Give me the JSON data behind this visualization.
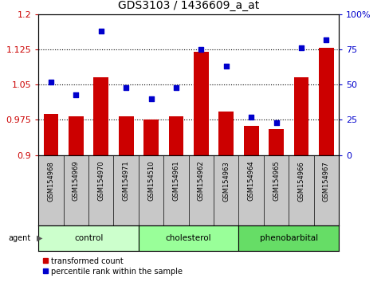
{
  "title": "GDS3103 / 1436609_a_at",
  "categories": [
    "GSM154968",
    "GSM154969",
    "GSM154970",
    "GSM154971",
    "GSM154510",
    "GSM154961",
    "GSM154962",
    "GSM154963",
    "GSM154964",
    "GSM154965",
    "GSM154966",
    "GSM154967"
  ],
  "bar_values": [
    0.988,
    0.983,
    1.065,
    0.983,
    0.975,
    0.983,
    1.119,
    0.992,
    0.963,
    0.955,
    1.065,
    1.128
  ],
  "dot_values": [
    52,
    43,
    88,
    48,
    40,
    48,
    75,
    63,
    27,
    23,
    76,
    82
  ],
  "bar_color": "#cc0000",
  "dot_color": "#0000cc",
  "ylim_left": [
    0.9,
    1.2
  ],
  "ylim_right": [
    0,
    100
  ],
  "yticks_left": [
    0.9,
    0.975,
    1.05,
    1.125,
    1.2
  ],
  "ytick_labels_left": [
    "0.9",
    "0.975",
    "1.05",
    "1.125",
    "1.2"
  ],
  "yticks_right": [
    0,
    25,
    50,
    75,
    100
  ],
  "ytick_labels_right": [
    "0",
    "25",
    "50",
    "75",
    "100%"
  ],
  "hlines": [
    0.975,
    1.05,
    1.125
  ],
  "groups": [
    {
      "label": "control",
      "start": 0,
      "end": 4,
      "color": "#ccffcc"
    },
    {
      "label": "cholesterol",
      "start": 4,
      "end": 8,
      "color": "#99ff99"
    },
    {
      "label": "phenobarbital",
      "start": 8,
      "end": 12,
      "color": "#66dd66"
    }
  ],
  "agent_label": "agent",
  "legend_items": [
    {
      "label": "transformed count",
      "color": "#cc0000"
    },
    {
      "label": "percentile rank within the sample",
      "color": "#0000cc"
    }
  ],
  "bg_color": "#ffffff",
  "tick_area_color": "#c8c8c8",
  "group_bar_colors": [
    "#ccffcc",
    "#99ff99",
    "#66dd66"
  ]
}
